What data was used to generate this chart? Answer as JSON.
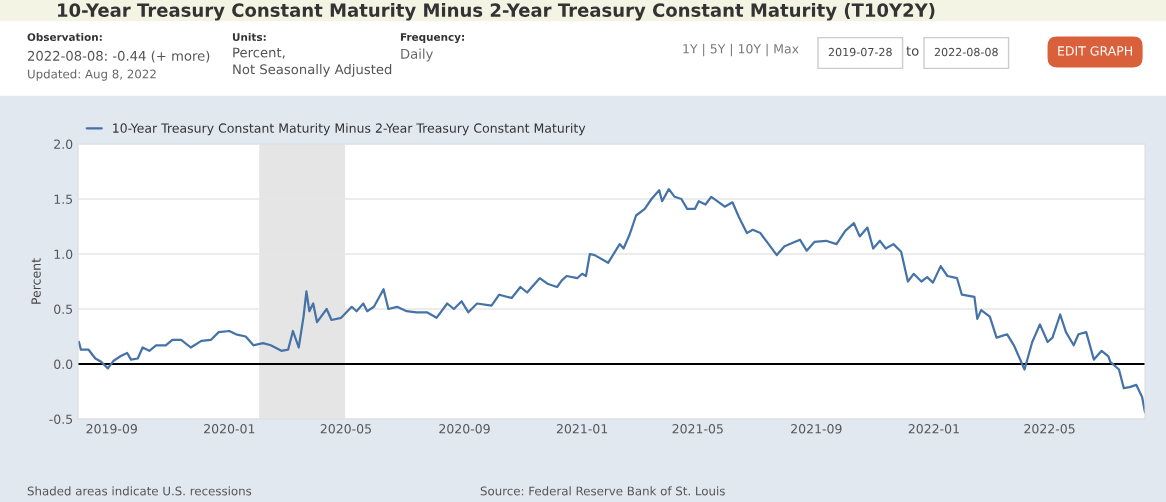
{
  "chart_data": {
    "type": "line",
    "title": "10-Year Treasury Constant Maturity Minus 2-Year Treasury Constant Maturity (T10Y2Y)",
    "ylabel": "Percent",
    "x": [
      "2019-07-29",
      "2019-07-31",
      "2019-08-08",
      "2019-08-15",
      "2019-08-21",
      "2019-08-28",
      "2019-09-03",
      "2019-09-10",
      "2019-09-17",
      "2019-09-21",
      "2019-09-28",
      "2019-10-03",
      "2019-10-10",
      "2019-10-17",
      "2019-10-27",
      "2019-11-03",
      "2019-11-12",
      "2019-11-22",
      "2019-12-03",
      "2019-12-13",
      "2019-12-21",
      "2020-01-01",
      "2020-01-08",
      "2020-01-18",
      "2020-01-26",
      "2020-02-05",
      "2020-02-13",
      "2020-02-24",
      "2020-03-02",
      "2020-03-07",
      "2020-03-13",
      "2020-03-18",
      "2020-03-21",
      "2020-03-24",
      "2020-03-28",
      "2020-04-01",
      "2020-04-11",
      "2020-04-16",
      "2020-04-26",
      "2020-05-07",
      "2020-05-12",
      "2020-05-19",
      "2020-05-23",
      "2020-05-30",
      "2020-06-09",
      "2020-06-14",
      "2020-06-23",
      "2020-07-03",
      "2020-07-13",
      "2020-07-24",
      "2020-08-03",
      "2020-08-14",
      "2020-08-21",
      "2020-08-29",
      "2020-09-05",
      "2020-09-14",
      "2020-09-29",
      "2020-10-07",
      "2020-10-20",
      "2020-10-29",
      "2020-11-05",
      "2020-11-12",
      "2020-11-18",
      "2020-11-26",
      "2020-12-06",
      "2020-12-11",
      "2020-12-16",
      "2020-12-27",
      "2021-01-01",
      "2021-01-05",
      "2021-01-09",
      "2021-01-14",
      "2021-01-28",
      "2021-02-09",
      "2021-02-13",
      "2021-02-19",
      "2021-02-26",
      "2021-03-07",
      "2021-03-14",
      "2021-03-22",
      "2021-03-25",
      "2021-04-01",
      "2021-04-07",
      "2021-04-14",
      "2021-04-20",
      "2021-04-28",
      "2021-05-02",
      "2021-05-09",
      "2021-05-15",
      "2021-05-23",
      "2021-05-29",
      "2021-06-06",
      "2021-06-13",
      "2021-06-21",
      "2021-06-27",
      "2021-07-05",
      "2021-07-10",
      "2021-07-22",
      "2021-07-30",
      "2021-08-15",
      "2021-08-22",
      "2021-08-30",
      "2021-09-11",
      "2021-09-22",
      "2021-10-01",
      "2021-10-10",
      "2021-10-16",
      "2021-10-24",
      "2021-10-30",
      "2021-11-06",
      "2021-11-12",
      "2021-11-20",
      "2021-11-28",
      "2021-12-05",
      "2021-12-11",
      "2021-12-19",
      "2021-12-25",
      "2021-12-31",
      "2022-01-08",
      "2022-01-15",
      "2022-01-25",
      "2022-01-30",
      "2022-02-12",
      "2022-02-15",
      "2022-02-19",
      "2022-02-28",
      "2022-03-07",
      "2022-03-18",
      "2022-03-25",
      "2022-04-05",
      "2022-04-13",
      "2022-04-21",
      "2022-04-29",
      "2022-05-04",
      "2022-05-12",
      "2022-05-18",
      "2022-05-26",
      "2022-05-31",
      "2022-06-08",
      "2022-06-16",
      "2022-06-24",
      "2022-07-01",
      "2022-07-03",
      "2022-07-12",
      "2022-07-17",
      "2022-07-23",
      "2022-07-30",
      "2022-08-05",
      "2022-08-08"
    ],
    "series": [
      {
        "name": "10-Year Treasury Constant Maturity Minus 2-Year Treasury Constant Maturity",
        "color": "#4572a7",
        "values": [
          0.2,
          0.13,
          0.13,
          0.05,
          0.02,
          -0.04,
          0.03,
          0.07,
          0.1,
          0.04,
          0.05,
          0.15,
          0.12,
          0.17,
          0.17,
          0.22,
          0.22,
          0.15,
          0.21,
          0.22,
          0.29,
          0.3,
          0.27,
          0.25,
          0.17,
          0.19,
          0.17,
          0.12,
          0.13,
          0.3,
          0.15,
          0.43,
          0.66,
          0.48,
          0.55,
          0.38,
          0.5,
          0.4,
          0.42,
          0.52,
          0.48,
          0.55,
          0.48,
          0.52,
          0.68,
          0.5,
          0.52,
          0.48,
          0.47,
          0.47,
          0.42,
          0.55,
          0.5,
          0.57,
          0.47,
          0.55,
          0.53,
          0.63,
          0.6,
          0.7,
          0.65,
          0.72,
          0.78,
          0.73,
          0.7,
          0.76,
          0.8,
          0.78,
          0.82,
          0.8,
          1.0,
          0.99,
          0.92,
          1.09,
          1.05,
          1.17,
          1.35,
          1.41,
          1.5,
          1.58,
          1.48,
          1.59,
          1.52,
          1.5,
          1.41,
          1.41,
          1.48,
          1.45,
          1.52,
          1.47,
          1.43,
          1.47,
          1.33,
          1.19,
          1.22,
          1.19,
          1.13,
          0.99,
          1.07,
          1.13,
          1.03,
          1.11,
          1.12,
          1.09,
          1.21,
          1.28,
          1.16,
          1.24,
          1.05,
          1.12,
          1.05,
          1.09,
          1.02,
          0.75,
          0.82,
          0.75,
          0.79,
          0.74,
          0.89,
          0.8,
          0.78,
          0.63,
          0.61,
          0.41,
          0.49,
          0.43,
          0.24,
          0.27,
          0.17,
          -0.05,
          0.2,
          0.36,
          0.2,
          0.24,
          0.45,
          0.29,
          0.17,
          0.27,
          0.29,
          0.04,
          0.12,
          0.07,
          0.02,
          -0.05,
          -0.22,
          -0.21,
          -0.19,
          -0.3,
          -0.44
        ]
      }
    ],
    "xlim": [
      "2019-07-28",
      "2022-08-08"
    ],
    "xticks": [
      {
        "value": "2019-09-01",
        "label": "2019-09"
      },
      {
        "value": "2020-01-01",
        "label": "2020-01"
      },
      {
        "value": "2020-05-01",
        "label": "2020-05"
      },
      {
        "value": "2020-09-01",
        "label": "2020-09"
      },
      {
        "value": "2021-01-01",
        "label": "2021-01"
      },
      {
        "value": "2021-05-01",
        "label": "2021-05"
      },
      {
        "value": "2021-09-01",
        "label": "2021-09"
      },
      {
        "value": "2022-01-01",
        "label": "2022-01"
      },
      {
        "value": "2022-05-01",
        "label": "2022-05"
      }
    ],
    "ylim": [
      -0.5,
      2.0
    ],
    "yticks": [
      -0.5,
      {
        "value": 0,
        "label": "0.0"
      },
      0.5,
      {
        "value": 1,
        "label": "1.0"
      },
      1.5,
      {
        "value": 2,
        "label": "2.0"
      }
    ],
    "ref_lines": [
      {
        "axis": "y",
        "value": 0,
        "color": "#000000"
      }
    ],
    "bands": [
      {
        "axis": "x",
        "from": "2020-02-01",
        "to": "2020-04-30",
        "color": "#e5e5e5"
      }
    ],
    "grid": "y",
    "legend": "top left",
    "marker": "none",
    "line_style": "solid",
    "annotations": [
      "Observation:",
      "2022-08-08: -0.44 (+ more)",
      "Updated: Aug 8, 2022",
      "Units:",
      "Percent,\nNot Seasonally Adjusted",
      "Frequency:",
      "Daily",
      "1Y | 5Y | 10Y | Max",
      "2019-07-28",
      "to",
      "2022-08-08",
      "EDIT GRAPH",
      "Shaded areas indicate U.S. recessions",
      "Source: Federal Reserve Bank of St. Louis"
    ]
  }
}
